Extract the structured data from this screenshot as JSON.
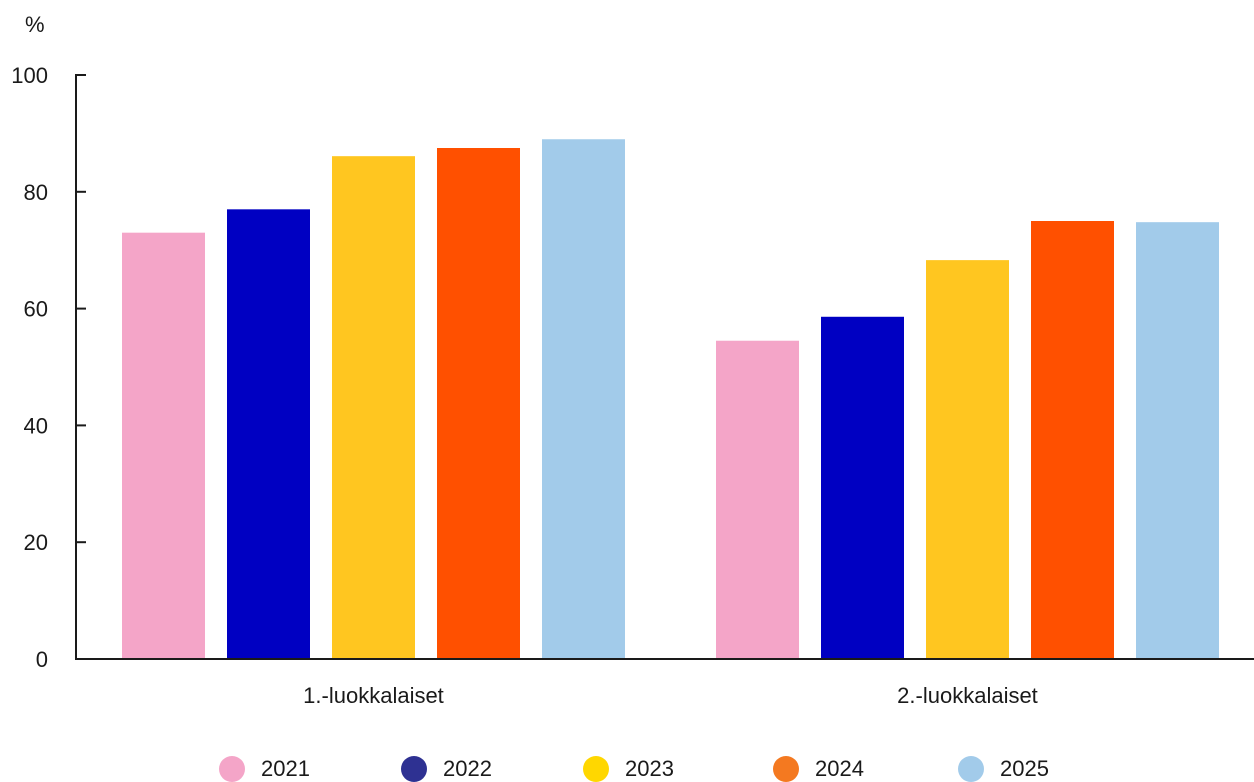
{
  "chart_data": {
    "type": "bar",
    "ylabel": "%",
    "xlabel": "",
    "ylim": [
      0,
      100
    ],
    "yticks": [
      0,
      20,
      40,
      60,
      80,
      100
    ],
    "categories": [
      "1.-luokkalaiset",
      "2.-luokkalaiset"
    ],
    "series": [
      {
        "name": "2021",
        "color": "#f4a5c8",
        "legend_color": "#f4a5c8",
        "values": [
          73,
          54.5
        ]
      },
      {
        "name": "2022",
        "color": "#0000c2",
        "legend_color": "#2e3192",
        "values": [
          77,
          58.6
        ]
      },
      {
        "name": "2023",
        "color": "#ffc620",
        "legend_color": "#ffd700",
        "values": [
          86.1,
          68.3
        ]
      },
      {
        "name": "2024",
        "color": "#ff5000",
        "legend_color": "#f47920",
        "values": [
          87.5,
          75
        ]
      },
      {
        "name": "2025",
        "color": "#a2cbea",
        "legend_color": "#a2cbea",
        "values": [
          89,
          74.8
        ]
      }
    ],
    "legend_position": "bottom"
  }
}
